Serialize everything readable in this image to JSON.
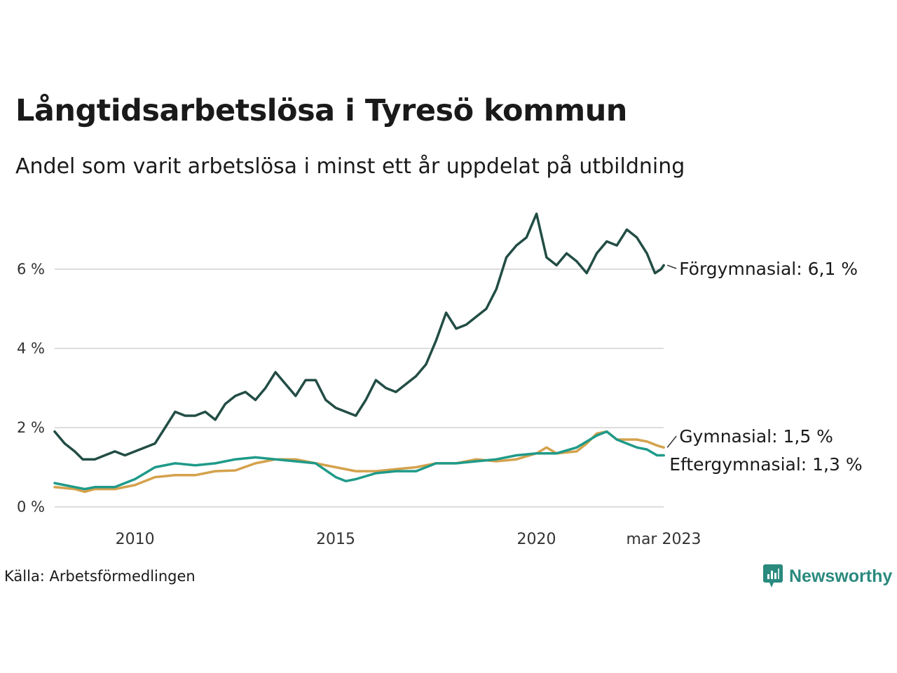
{
  "title": "Långtidsarbetslösa i Tyresö kommun",
  "subtitle": "Andel som varit arbetslösa i minst ett år uppdelat på utbildning",
  "source": "Källa: Arbetsförmedlingen",
  "brand": "Newsworthy",
  "colors": {
    "forgymnasial": "#224d45",
    "gymnasial": "#d4a24c",
    "eftergymnasial": "#1f9a89",
    "grid": "#dddddd",
    "brand": "#2a8a7e"
  },
  "chart_data": {
    "type": "line",
    "title": "Långtidsarbetslösa i Tyresö kommun",
    "x_start": "2008-01",
    "x_end": "2023-03",
    "x_unit": "month",
    "x_ticks": [
      2010,
      2015,
      2020
    ],
    "x_end_label": "mar 2023",
    "y_ticks": [
      0,
      2,
      4,
      6
    ],
    "y_tick_labels": [
      "0 %",
      "2 %",
      "4 %",
      "6 %"
    ],
    "ylim": [
      0,
      7.4
    ],
    "grid": "horizontal",
    "series": [
      {
        "key": "forgymnasial",
        "name": "Förgymnasial",
        "end_label": "Förgymnasial: 6,1 %",
        "values": [
          [
            2008.0,
            1.9
          ],
          [
            2008.25,
            1.6
          ],
          [
            2008.5,
            1.4
          ],
          [
            2008.7,
            1.2
          ],
          [
            2009.0,
            1.2
          ],
          [
            2009.25,
            1.3
          ],
          [
            2009.5,
            1.4
          ],
          [
            2009.75,
            1.3
          ],
          [
            2010.0,
            1.4
          ],
          [
            2010.25,
            1.5
          ],
          [
            2010.5,
            1.6
          ],
          [
            2010.75,
            2.0
          ],
          [
            2011.0,
            2.4
          ],
          [
            2011.25,
            2.3
          ],
          [
            2011.5,
            2.3
          ],
          [
            2011.75,
            2.4
          ],
          [
            2012.0,
            2.2
          ],
          [
            2012.25,
            2.6
          ],
          [
            2012.5,
            2.8
          ],
          [
            2012.75,
            2.9
          ],
          [
            2013.0,
            2.7
          ],
          [
            2013.25,
            3.0
          ],
          [
            2013.5,
            3.4
          ],
          [
            2013.75,
            3.1
          ],
          [
            2014.0,
            2.8
          ],
          [
            2014.25,
            3.2
          ],
          [
            2014.5,
            3.2
          ],
          [
            2014.75,
            2.7
          ],
          [
            2015.0,
            2.5
          ],
          [
            2015.25,
            2.4
          ],
          [
            2015.5,
            2.3
          ],
          [
            2015.75,
            2.7
          ],
          [
            2016.0,
            3.2
          ],
          [
            2016.25,
            3.0
          ],
          [
            2016.5,
            2.9
          ],
          [
            2016.75,
            3.1
          ],
          [
            2017.0,
            3.3
          ],
          [
            2017.25,
            3.6
          ],
          [
            2017.5,
            4.2
          ],
          [
            2017.75,
            4.9
          ],
          [
            2018.0,
            4.5
          ],
          [
            2018.25,
            4.6
          ],
          [
            2018.5,
            4.8
          ],
          [
            2018.75,
            5.0
          ],
          [
            2019.0,
            5.5
          ],
          [
            2019.25,
            6.3
          ],
          [
            2019.5,
            6.6
          ],
          [
            2019.75,
            6.8
          ],
          [
            2020.0,
            7.4
          ],
          [
            2020.25,
            6.3
          ],
          [
            2020.5,
            6.1
          ],
          [
            2020.75,
            6.4
          ],
          [
            2021.0,
            6.2
          ],
          [
            2021.25,
            5.9
          ],
          [
            2021.5,
            6.4
          ],
          [
            2021.75,
            6.7
          ],
          [
            2022.0,
            6.6
          ],
          [
            2022.25,
            7.0
          ],
          [
            2022.5,
            6.8
          ],
          [
            2022.75,
            6.4
          ],
          [
            2022.95,
            5.9
          ],
          [
            2023.1,
            6.0
          ],
          [
            2023.17,
            6.1
          ]
        ]
      },
      {
        "key": "gymnasial",
        "name": "Gymnasial",
        "end_label": "Gymnasial: 1,5 %",
        "values": [
          [
            2008.0,
            0.5
          ],
          [
            2008.5,
            0.45
          ],
          [
            2008.75,
            0.38
          ],
          [
            2009.0,
            0.45
          ],
          [
            2009.5,
            0.45
          ],
          [
            2010.0,
            0.55
          ],
          [
            2010.5,
            0.75
          ],
          [
            2011.0,
            0.8
          ],
          [
            2011.5,
            0.8
          ],
          [
            2012.0,
            0.9
          ],
          [
            2012.5,
            0.92
          ],
          [
            2013.0,
            1.1
          ],
          [
            2013.5,
            1.2
          ],
          [
            2014.0,
            1.2
          ],
          [
            2014.5,
            1.1
          ],
          [
            2015.0,
            1.0
          ],
          [
            2015.5,
            0.9
          ],
          [
            2016.0,
            0.9
          ],
          [
            2016.5,
            0.95
          ],
          [
            2017.0,
            1.0
          ],
          [
            2017.5,
            1.1
          ],
          [
            2018.0,
            1.1
          ],
          [
            2018.5,
            1.2
          ],
          [
            2019.0,
            1.15
          ],
          [
            2019.5,
            1.2
          ],
          [
            2020.0,
            1.35
          ],
          [
            2020.25,
            1.5
          ],
          [
            2020.5,
            1.35
          ],
          [
            2021.0,
            1.4
          ],
          [
            2021.25,
            1.6
          ],
          [
            2021.5,
            1.85
          ],
          [
            2021.75,
            1.9
          ],
          [
            2022.0,
            1.7
          ],
          [
            2022.5,
            1.7
          ],
          [
            2022.75,
            1.65
          ],
          [
            2023.0,
            1.55
          ],
          [
            2023.17,
            1.5
          ]
        ]
      },
      {
        "key": "eftergymnasial",
        "name": "Eftergymnasial",
        "end_label": "Eftergymnasial: 1,3 %",
        "values": [
          [
            2008.0,
            0.6
          ],
          [
            2008.5,
            0.5
          ],
          [
            2008.75,
            0.45
          ],
          [
            2009.0,
            0.5
          ],
          [
            2009.5,
            0.5
          ],
          [
            2010.0,
            0.7
          ],
          [
            2010.5,
            1.0
          ],
          [
            2011.0,
            1.1
          ],
          [
            2011.5,
            1.05
          ],
          [
            2012.0,
            1.1
          ],
          [
            2012.5,
            1.2
          ],
          [
            2013.0,
            1.25
          ],
          [
            2013.5,
            1.2
          ],
          [
            2014.0,
            1.15
          ],
          [
            2014.5,
            1.1
          ],
          [
            2015.0,
            0.75
          ],
          [
            2015.25,
            0.65
          ],
          [
            2015.5,
            0.7
          ],
          [
            2016.0,
            0.85
          ],
          [
            2016.5,
            0.9
          ],
          [
            2017.0,
            0.9
          ],
          [
            2017.5,
            1.1
          ],
          [
            2018.0,
            1.1
          ],
          [
            2018.5,
            1.15
          ],
          [
            2019.0,
            1.2
          ],
          [
            2019.5,
            1.3
          ],
          [
            2020.0,
            1.35
          ],
          [
            2020.5,
            1.35
          ],
          [
            2021.0,
            1.5
          ],
          [
            2021.5,
            1.8
          ],
          [
            2021.75,
            1.9
          ],
          [
            2022.0,
            1.7
          ],
          [
            2022.5,
            1.5
          ],
          [
            2022.75,
            1.45
          ],
          [
            2023.0,
            1.3
          ],
          [
            2023.17,
            1.3
          ]
        ]
      }
    ]
  }
}
